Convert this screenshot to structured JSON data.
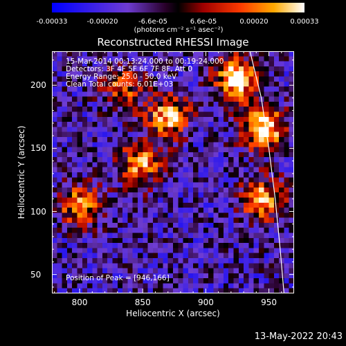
{
  "colorbar": {
    "min": -0.00033,
    "max": 0.00033,
    "ticks": [
      "-0.00033",
      "-0.00020",
      "-6.6e-05",
      "6.6e-05",
      "0.00020",
      "0.00033"
    ],
    "tick_values": [
      -0.00033,
      -0.0002,
      -6.6e-05,
      6.6e-05,
      0.0002,
      0.00033
    ],
    "unit_label": "(photons cm⁻² s⁻¹ asec⁻²)"
  },
  "info": {
    "line1": "15-Mar-2014 00:13:24.000 to 00:19:24.000",
    "line2": "Detectors: 3F 4F 5F 6F 7F 8F, Att 0",
    "line3": "Energy Range: 25.0 - 50.0 keV",
    "line4": "Clean     Total counts: 6.01E+03",
    "peak": "Position of Peak = [946,166]"
  },
  "footer": {
    "date": "13-May-2022 20:43"
  },
  "chart_data": {
    "type": "heatmap",
    "title": "Reconstructed RHESSI Image",
    "xlabel": "Heliocentric X (arcsec)",
    "ylabel": "Heliocentric Y (arcsec)",
    "xlim": [
      778,
      970
    ],
    "ylim": [
      35,
      227
    ],
    "xticks": [
      800,
      850,
      900,
      950
    ],
    "yticks": [
      50,
      100,
      150,
      200
    ],
    "peak": [
      946,
      166
    ],
    "grid": false,
    "limb_curve": [
      [
        935,
        227
      ],
      [
        944,
        190
      ],
      [
        950,
        150
      ],
      [
        955,
        110
      ],
      [
        959,
        70
      ],
      [
        962,
        35
      ]
    ],
    "bright_regions": [
      {
        "x": 925,
        "y": 205,
        "value": 0.00033
      },
      {
        "x": 946,
        "y": 166,
        "value": 0.00033
      },
      {
        "x": 870,
        "y": 175,
        "value": 0.00026
      },
      {
        "x": 848,
        "y": 138,
        "value": 0.00022
      },
      {
        "x": 800,
        "y": 105,
        "value": 0.0002
      },
      {
        "x": 945,
        "y": 110,
        "value": 0.00024
      },
      {
        "x": 835,
        "y": 198,
        "value": 0.00014
      }
    ]
  }
}
